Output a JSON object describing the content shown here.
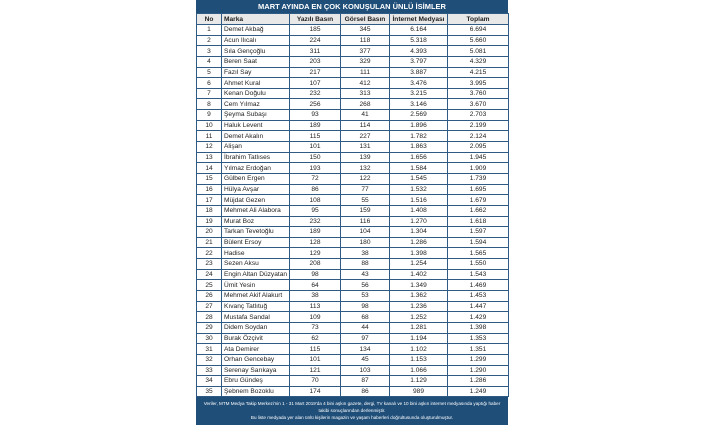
{
  "title": "MART AYINDA EN ÇOK KONUŞULAN ÜNLÜ İSİMLER",
  "headers": [
    "No",
    "Marka",
    "Yazılı Basın",
    "Görsel Basın",
    "İnternet Medyası",
    "Toplam"
  ],
  "rows": [
    [
      "1",
      "Demet Akbağ",
      "185",
      "345",
      "6.164",
      "6.694"
    ],
    [
      "2",
      "Acun Ilıcalı",
      "224",
      "118",
      "5.318",
      "5.660"
    ],
    [
      "3",
      "Sıla Gençoğlu",
      "311",
      "377",
      "4.393",
      "5.081"
    ],
    [
      "4",
      "Beren Saat",
      "203",
      "329",
      "3.797",
      "4.329"
    ],
    [
      "5",
      "Fazıl Say",
      "217",
      "111",
      "3.887",
      "4.215"
    ],
    [
      "6",
      "Ahmet Kural",
      "107",
      "412",
      "3.476",
      "3.995"
    ],
    [
      "7",
      "Kenan Doğulu",
      "232",
      "313",
      "3.215",
      "3.760"
    ],
    [
      "8",
      "Cem Yılmaz",
      "256",
      "268",
      "3.146",
      "3.670"
    ],
    [
      "9",
      "Şeyma Subaşı",
      "93",
      "41",
      "2.569",
      "2.703"
    ],
    [
      "10",
      "Haluk Levent",
      "189",
      "114",
      "1.896",
      "2.199"
    ],
    [
      "11",
      "Demet Akalın",
      "115",
      "227",
      "1.782",
      "2.124"
    ],
    [
      "12",
      "Alişan",
      "101",
      "131",
      "1.863",
      "2.095"
    ],
    [
      "13",
      "İbrahim Tatlıses",
      "150",
      "139",
      "1.656",
      "1.945"
    ],
    [
      "14",
      "Yılmaz Erdoğan",
      "193",
      "132",
      "1.584",
      "1.909"
    ],
    [
      "15",
      "Gülben Ergen",
      "72",
      "122",
      "1.545",
      "1.739"
    ],
    [
      "16",
      "Hülya Avşar",
      "86",
      "77",
      "1.532",
      "1.695"
    ],
    [
      "17",
      "Müjdat Gezen",
      "108",
      "55",
      "1.516",
      "1.679"
    ],
    [
      "18",
      "Mehmet Ali Alabora",
      "95",
      "159",
      "1.408",
      "1.662"
    ],
    [
      "19",
      "Murat Boz",
      "232",
      "116",
      "1.270",
      "1.618"
    ],
    [
      "20",
      "Tarkan Tevetoğlu",
      "189",
      "104",
      "1.304",
      "1.597"
    ],
    [
      "21",
      "Bülent Ersoy",
      "128",
      "180",
      "1.286",
      "1.594"
    ],
    [
      "22",
      "Hadise",
      "129",
      "38",
      "1.398",
      "1.565"
    ],
    [
      "23",
      "Sezen Aksu",
      "208",
      "88",
      "1.254",
      "1.550"
    ],
    [
      "24",
      "Engin Altan Düzyatan",
      "98",
      "43",
      "1.402",
      "1.543"
    ],
    [
      "25",
      "Ümit Yesin",
      "64",
      "56",
      "1.349",
      "1.469"
    ],
    [
      "26",
      "Mehmet Akif Alakurt",
      "38",
      "53",
      "1.362",
      "1.453"
    ],
    [
      "27",
      "Kıvanç Tatlıtuğ",
      "113",
      "98",
      "1.236",
      "1.447"
    ],
    [
      "28",
      "Mustafa Sandal",
      "109",
      "68",
      "1.252",
      "1.429"
    ],
    [
      "29",
      "Didem Soydan",
      "73",
      "44",
      "1.281",
      "1.398"
    ],
    [
      "30",
      "Burak Özçivit",
      "62",
      "97",
      "1.194",
      "1.353"
    ],
    [
      "31",
      "Ata Demirer",
      "115",
      "134",
      "1.102",
      "1.351"
    ],
    [
      "32",
      "Orhan Gencebay",
      "101",
      "45",
      "1.153",
      "1.299"
    ],
    [
      "33",
      "Serenay Sarıkaya",
      "121",
      "103",
      "1.066",
      "1.290"
    ],
    [
      "34",
      "Ebru Gündeş",
      "70",
      "87",
      "1.129",
      "1.286"
    ],
    [
      "35",
      "Şebnem Bozoklu",
      "174",
      "86",
      "989",
      "1.249"
    ]
  ],
  "footer": [
    "Veriler, MTM Medya Takip Merkezi'nin 1 - 31 Mart 2019'da 4 bini aşkın gazete, dergi, TV kanalı ve 10 bini aşkın internet medyasında yaptığı haber takibi sonuçlarından derlenmiştir.",
    "Bu liste medyada yer alan ünlü kişilerin magazin ve yaşam haberleri doğrultusunda oluşturulmuştur."
  ]
}
